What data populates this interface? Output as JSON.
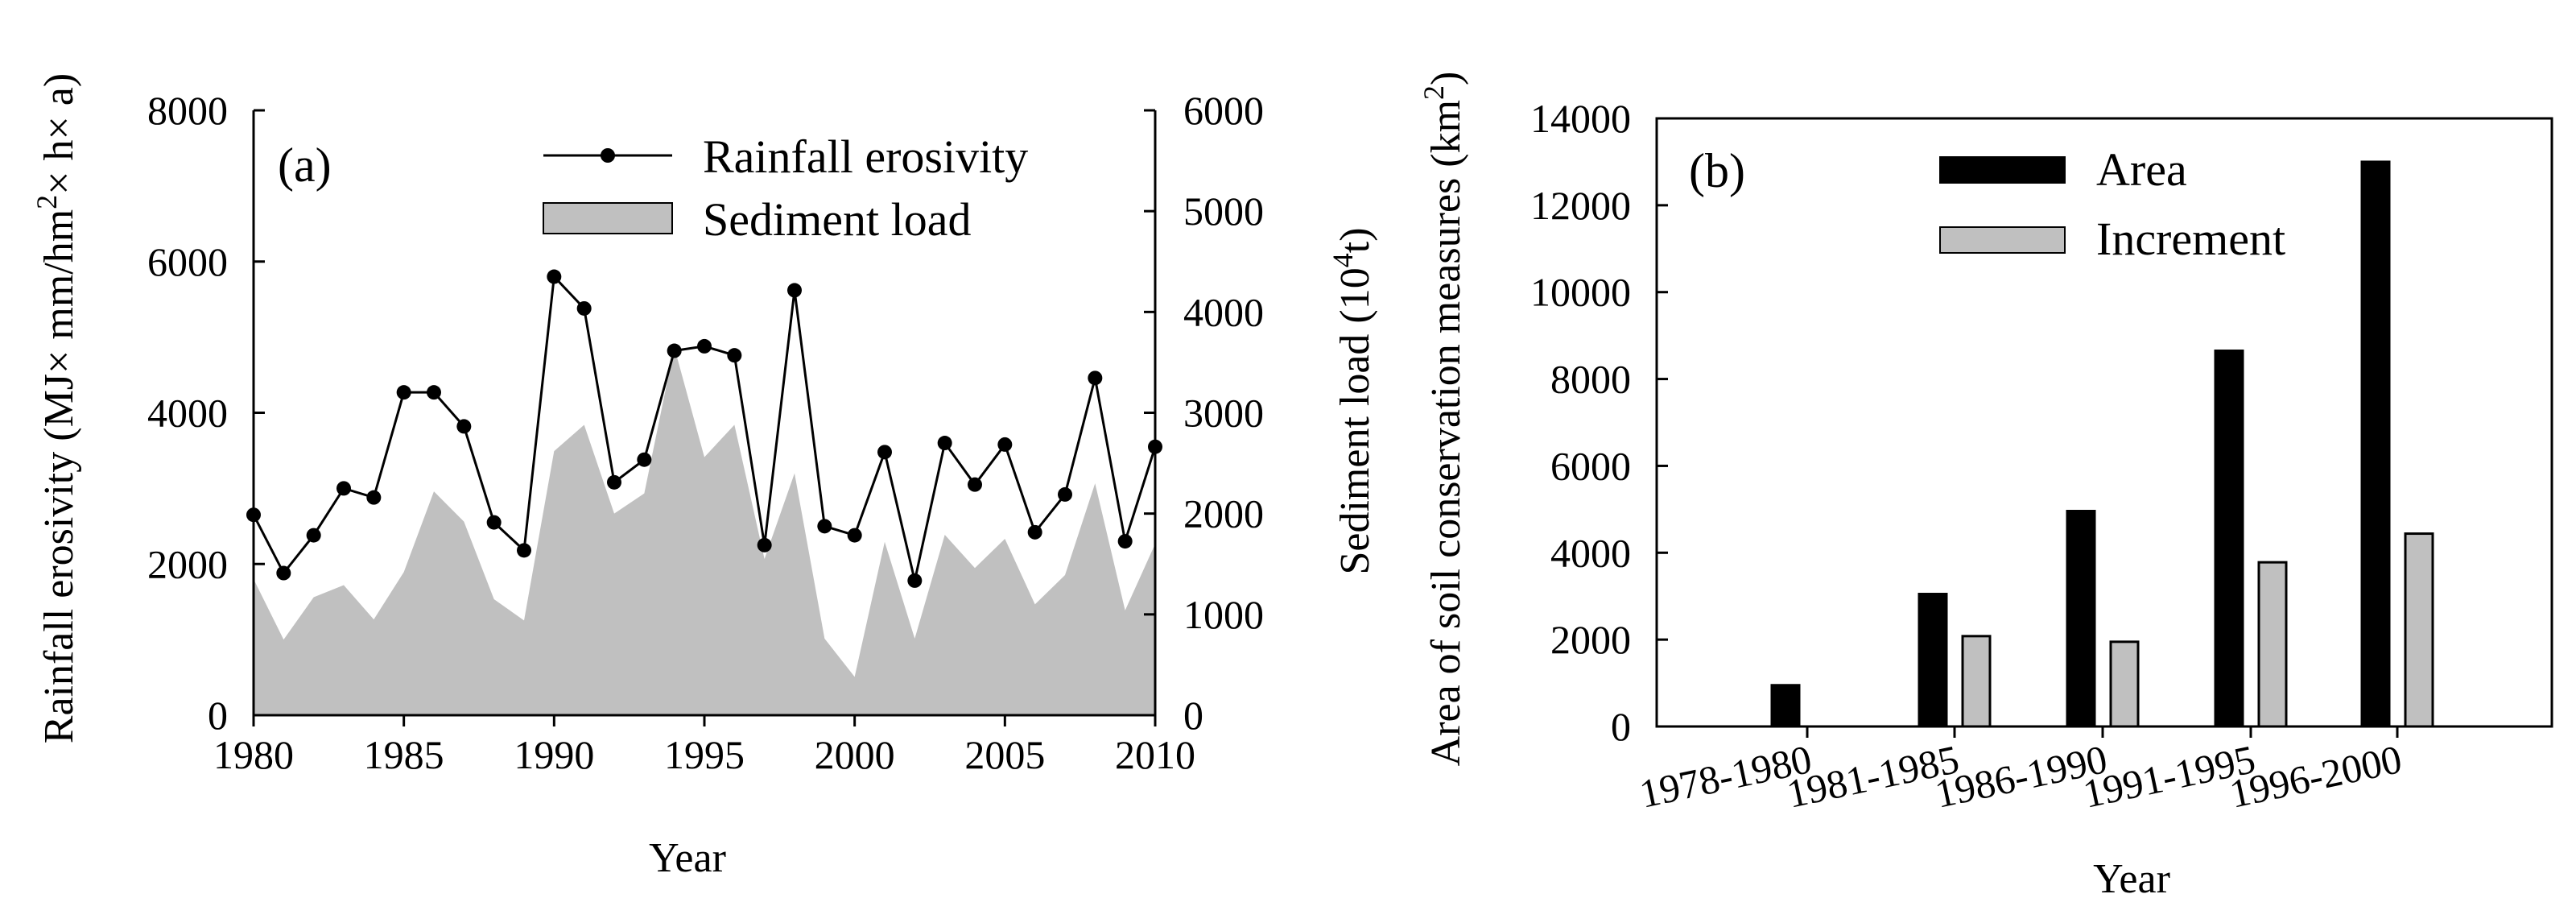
{
  "chart_data": [
    {
      "panel": "(a)",
      "type": "line",
      "xlabel": "Year",
      "ylabel_main": "Rainfall erosivity (MJ× mm/hm",
      "ylabel_sup": "2",
      "ylabel_tail": "× h× a)",
      "y2label_main": "Sediment load (10",
      "y2label_sup": "4",
      "y2label_tail": "t)",
      "xlim": [
        1980,
        2010
      ],
      "ylim": [
        0,
        8000
      ],
      "y2lim": [
        0,
        6000
      ],
      "x_ticks": [
        1980,
        1985,
        1990,
        1995,
        2000,
        2005,
        2010
      ],
      "y_ticks": [
        0,
        2000,
        4000,
        6000,
        8000
      ],
      "y2_ticks": [
        0,
        1000,
        2000,
        3000,
        4000,
        5000,
        6000
      ],
      "legend": [
        {
          "label": "Rainfall erosivity",
          "style": "line-marker"
        },
        {
          "label": "Sediment load",
          "style": "area"
        }
      ],
      "years": [
        1980,
        1981,
        1982,
        1983,
        1984,
        1985,
        1986,
        1987,
        1988,
        1989,
        1990,
        1991,
        1992,
        1993,
        1994,
        1995,
        1996,
        1997,
        1998,
        1999,
        2000,
        2001,
        2002,
        2003,
        2004,
        2005,
        2006,
        2007,
        2008,
        2009,
        2010
      ],
      "series": [
        {
          "name": "Rainfall erosivity",
          "axis": "left",
          "values": [
            2650,
            1880,
            2380,
            3000,
            2880,
            4270,
            4270,
            3820,
            2550,
            2180,
            5800,
            5380,
            3080,
            3380,
            4820,
            4880,
            4760,
            2250,
            5620,
            2500,
            2380,
            3480,
            1780,
            3600,
            3050,
            3580,
            2420,
            2920,
            4460,
            2300,
            3550
          ]
        },
        {
          "name": "Sediment load",
          "axis": "right",
          "values": [
            1350,
            750,
            1170,
            1290,
            950,
            1420,
            2220,
            1920,
            1150,
            940,
            2620,
            2880,
            2000,
            2200,
            3650,
            2560,
            2880,
            1550,
            2400,
            760,
            380,
            1720,
            760,
            1790,
            1460,
            1750,
            1100,
            1390,
            2300,
            1040,
            1700
          ]
        }
      ]
    },
    {
      "panel": "(b)",
      "type": "bar",
      "xlabel": "Year",
      "ylabel_main": "Area of soil conservation measures (km",
      "ylabel_sup": "2",
      "ylabel_tail": ")",
      "ylim": [
        0,
        14000
      ],
      "y_ticks": [
        0,
        2000,
        4000,
        6000,
        8000,
        10000,
        12000,
        14000
      ],
      "categories": [
        "1978-1980",
        "1981-1985",
        "1986-1990",
        "1991-1995",
        "1996-2000"
      ],
      "series": [
        {
          "name": "Area",
          "values": [
            950,
            3050,
            4960,
            8650,
            13000
          ]
        },
        {
          "name": "Increment",
          "values": [
            null,
            2080,
            1950,
            3780,
            4440
          ]
        }
      ],
      "colors": {
        "Area": "#000000",
        "Increment": "#c0c0c0"
      }
    }
  ]
}
